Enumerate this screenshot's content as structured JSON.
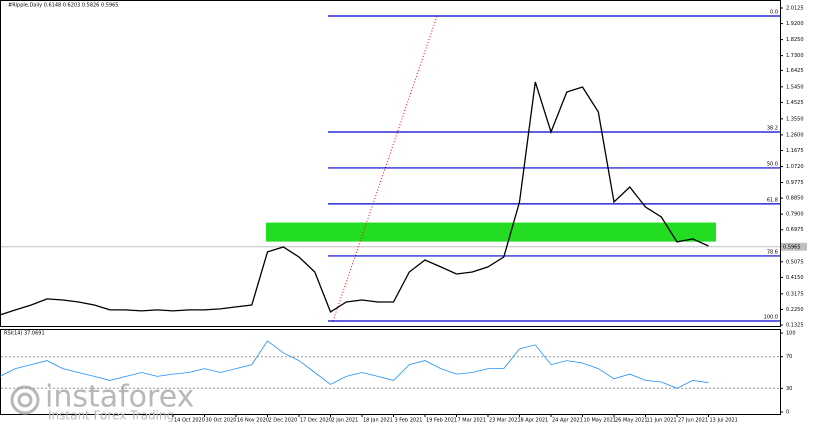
{
  "chart_data": [
    {
      "type": "line",
      "title": "#Ripple,Daily  0.6148 0.6203 0.5826 0.5965",
      "color": "#000000",
      "categories": [
        null,
        null,
        null,
        null,
        null,
        null,
        null,
        null,
        null,
        null,
        null,
        "14 Oct 2020",
        null,
        "30 Oct 2020",
        null,
        "16 Nov 2020",
        null,
        "2 Dec 2020",
        null,
        "17 Dec 2020",
        null,
        "2 Jan 2021",
        null,
        "18 Jan 2021",
        null,
        "3 Feb 2021",
        null,
        "19 Feb 2021",
        null,
        "7 Mar 2021",
        null,
        "23 Mar 2021",
        null,
        "8 Apr 2021",
        null,
        "24 Apr 2021",
        null,
        "10 May 2021",
        null,
        "26 May 2021",
        null,
        "11 Jun 2021",
        null,
        "27 Jun 2021",
        null,
        "13 Jul 2021"
      ],
      "values": [
        0.192,
        0.222,
        0.251,
        0.287,
        0.281,
        0.269,
        0.251,
        0.222,
        0.222,
        0.216,
        0.222,
        0.216,
        0.222,
        0.222,
        0.228,
        0.24,
        0.251,
        0.566,
        0.595,
        0.536,
        0.447,
        0.21,
        0.269,
        0.281,
        0.269,
        0.269,
        0.447,
        0.518,
        0.477,
        0.435,
        0.447,
        0.477,
        0.536,
        0.862,
        1.574,
        1.277,
        1.514,
        1.544,
        1.396,
        0.862,
        0.951,
        0.832,
        0.773,
        0.625,
        0.643,
        0.601
      ],
      "ylim": [
        0.1206,
        2.048
      ],
      "yticks": [
        2.0125,
        {
          "value": 1.92,
          "label": "1.9200"
        },
        {
          "value": 1.825,
          "label": "1.8250"
        },
        {
          "value": 1.73,
          "label": "1.7300"
        },
        1.6425,
        {
          "value": 1.545,
          "label": "1.5450"
        },
        1.4525,
        {
          "value": 1.355,
          "label": "1.3550"
        },
        {
          "value": 1.26,
          "label": "1.2600"
        },
        1.1675,
        {
          "value": 1.072,
          "label": "1.0720"
        },
        0.9775,
        {
          "value": 0.885,
          "label": "0.8850"
        },
        {
          "value": 0.79,
          "label": "0.7900"
        },
        0.6975,
        0.6025,
        0.5075,
        {
          "value": 0.415,
          "label": "0.4150"
        },
        0.3175,
        {
          "value": 0.225,
          "label": "0.2250"
        },
        0.1325
      ],
      "levels": [
        {
          "label": "0.0",
          "value": 1.965
        },
        {
          "label": "38.2",
          "value": 1.277
        },
        {
          "label": "50.0",
          "value": 1.064
        },
        {
          "label": "61.8",
          "value": 0.851
        },
        {
          "label": "78.6",
          "value": 0.542
        },
        {
          "label": "100.0",
          "value": 0.156
        }
      ],
      "level_color": "#0000cd",
      "zone": [
        0.627,
        0.74
      ],
      "zone_color": "#22dd22",
      "last_value": 0.5965
    },
    {
      "type": "line",
      "title": "RSI(14) 37.0691",
      "color": "#1e90ff",
      "values": [
        45,
        55,
        60,
        65,
        55,
        50,
        45,
        40,
        45,
        50,
        45,
        48,
        50,
        55,
        50,
        55,
        60,
        90,
        75,
        65,
        50,
        35,
        45,
        50,
        45,
        40,
        60,
        65,
        55,
        48,
        50,
        55,
        55,
        80,
        85,
        60,
        65,
        62,
        55,
        42,
        48,
        40,
        38,
        30,
        40,
        37.07
      ],
      "ylim": [
        0,
        100
      ],
      "yticks": [
        100,
        70,
        30,
        0
      ]
    }
  ],
  "watermark": {
    "brand": "instaforex",
    "tagline": "Instant Forex Trading"
  }
}
